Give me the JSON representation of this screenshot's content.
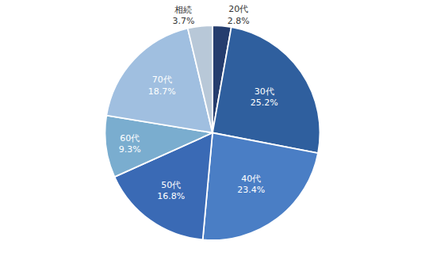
{
  "chart_data": {
    "type": "pie",
    "categories": [
      "20代",
      "30代",
      "40代",
      "50代",
      "60代",
      "70代",
      "相続"
    ],
    "values": [
      2.8,
      25.2,
      23.4,
      16.8,
      9.3,
      18.7,
      3.7
    ],
    "value_labels": [
      "2.8%",
      "25.2%",
      "23.4%",
      "16.8%",
      "9.3%",
      "18.7%",
      "3.7%"
    ],
    "colors": [
      "#253d6e",
      "#2f5f9e",
      "#4a7ec5",
      "#3a6ab5",
      "#7aadcf",
      "#a0bfe0",
      "#b8c8d8"
    ],
    "data_labels": true
  }
}
